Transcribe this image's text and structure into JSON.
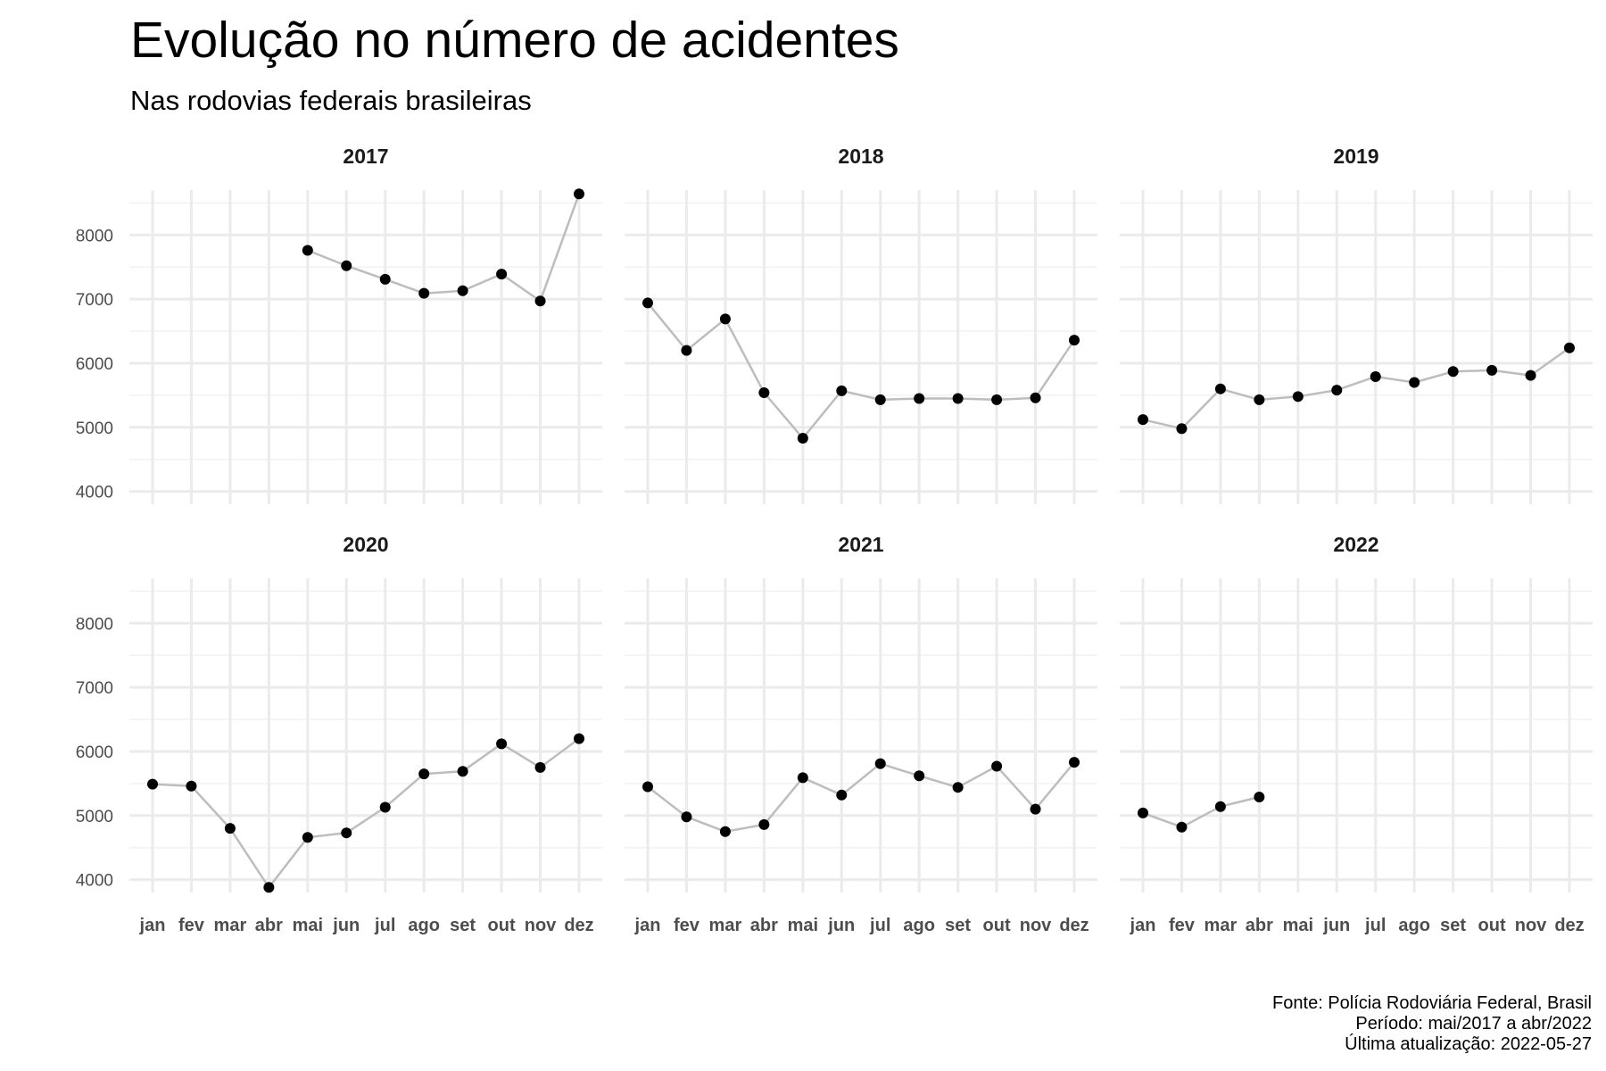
{
  "colors": {
    "background": "#ffffff",
    "grid_major": "#ebebeb",
    "grid_minor": "#f2f2f2",
    "line": "#bdbdbd",
    "point": "#000000",
    "text": "#1a1a1a",
    "tick_text": "#4d4d4d"
  },
  "caption": {
    "line1": "Fonte: Polícia Rodoviária Federal, Brasil",
    "line2": "Período: mai/2017 a abr/2022",
    "line3": "Última atualização: 2022-05-27"
  },
  "chart_data": {
    "type": "line",
    "title": "Evolução no número de acidentes",
    "subtitle": "Nas rodovias federais brasileiras",
    "xlabel": "",
    "ylabel": "",
    "ylim": [
      3800,
      8700
    ],
    "yticks": [
      4000,
      5000,
      6000,
      7000,
      8000
    ],
    "grid": true,
    "markers": true,
    "categories": [
      "jan",
      "fev",
      "mar",
      "abr",
      "mai",
      "jun",
      "jul",
      "ago",
      "set",
      "out",
      "nov",
      "dez"
    ],
    "panels": [
      {
        "label": "2017",
        "values": [
          null,
          null,
          null,
          null,
          7760,
          7520,
          7310,
          7090,
          7130,
          7390,
          6970,
          8640
        ]
      },
      {
        "label": "2018",
        "values": [
          6940,
          6200,
          6690,
          5540,
          4830,
          5570,
          5430,
          5450,
          5450,
          5430,
          5460,
          6360
        ]
      },
      {
        "label": "2019",
        "values": [
          5120,
          4980,
          5600,
          5430,
          5480,
          5580,
          5790,
          5700,
          5870,
          5890,
          5810,
          6240
        ]
      },
      {
        "label": "2020",
        "values": [
          5490,
          5460,
          4800,
          3880,
          4660,
          4730,
          5130,
          5650,
          5690,
          6120,
          5750,
          6200
        ]
      },
      {
        "label": "2021",
        "values": [
          5450,
          4980,
          4750,
          4860,
          5590,
          5320,
          5810,
          5620,
          5440,
          5770,
          5100,
          5830
        ]
      },
      {
        "label": "2022",
        "values": [
          5040,
          4820,
          5140,
          5290,
          null,
          null,
          null,
          null,
          null,
          null,
          null,
          null
        ]
      }
    ]
  }
}
